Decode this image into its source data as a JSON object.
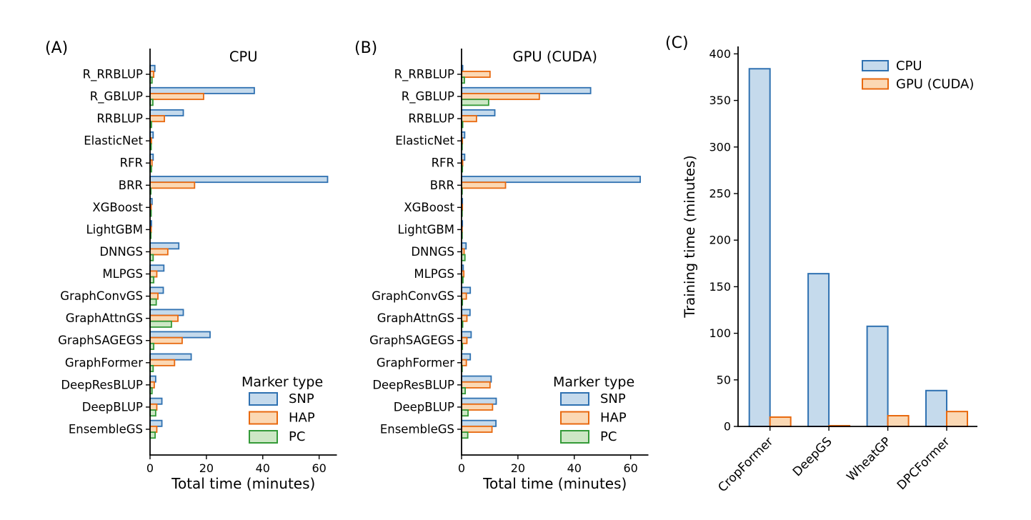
{
  "chart_data": [
    {
      "panel_label": "(A)",
      "type": "bar",
      "orientation": "horizontal",
      "title": "CPU",
      "xlabel": "Total time (minutes)",
      "categories": [
        "R_RRBLUP",
        "R_GBLUP",
        "RRBLUP",
        "ElasticNet",
        "RFR",
        "BRR",
        "XGBoost",
        "LightGBM",
        "DNNGS",
        "MLPGS",
        "GraphConvGS",
        "GraphAttnGS",
        "GraphSAGEGS",
        "GraphFormer",
        "DeepResBLUP",
        "DeepBLUP",
        "EnsembleGS"
      ],
      "series": [
        {
          "name": "SNP",
          "edge": "#2f71b1",
          "fill": "#c5daec",
          "values": [
            1.7,
            37,
            11.8,
            1.1,
            1.1,
            63,
            0.7,
            0.5,
            10.2,
            4.9,
            4.7,
            11.8,
            21.3,
            14.6,
            2.0,
            4.2,
            4.2
          ]
        },
        {
          "name": "HAP",
          "edge": "#e8690f",
          "fill": "#fbd8b4",
          "values": [
            1.3,
            19,
            5.1,
            0.5,
            0.7,
            15.8,
            0.4,
            0.4,
            6.3,
            2.4,
            2.8,
            9.9,
            11.4,
            8.7,
            1.5,
            2.4,
            2.4
          ]
        },
        {
          "name": "PC",
          "edge": "#349a38",
          "fill": "#cde7c5",
          "values": [
            0.7,
            1.0,
            0.5,
            0.4,
            0.5,
            0.3,
            0.4,
            0.3,
            1.1,
            1.3,
            2.2,
            7.6,
            1.3,
            1.1,
            0.7,
            2.0,
            1.8
          ]
        }
      ],
      "xticks": [
        0,
        20,
        40,
        60
      ],
      "xlim": [
        0,
        66.3
      ],
      "legend": {
        "title": "Marker type",
        "entries": [
          "SNP",
          "HAP",
          "PC"
        ],
        "position": "lower right"
      }
    },
    {
      "panel_label": "(B)",
      "type": "bar",
      "orientation": "horizontal",
      "title": "GPU (CUDA)",
      "xlabel": "Total time (minutes)",
      "categories": [
        "R_RRBLUP",
        "R_GBLUP",
        "RRBLUP",
        "ElasticNet",
        "RFR",
        "BRR",
        "XGBoost",
        "LightGBM",
        "DNNGS",
        "MLPGS",
        "GraphConvGS",
        "GraphAttnGS",
        "GraphSAGEGS",
        "GraphFormer",
        "DeepResBLUP",
        "DeepBLUP",
        "EnsembleGS"
      ],
      "series": [
        {
          "name": "SNP",
          "edge": "#2f71b1",
          "fill": "#c5daec",
          "values": [
            0.4,
            45.8,
            11.8,
            1.1,
            1.1,
            63.4,
            0.3,
            0.3,
            1.6,
            0.6,
            3.1,
            3.0,
            3.4,
            3.1,
            10.5,
            12.3,
            12.2
          ]
        },
        {
          "name": "HAP",
          "edge": "#e8690f",
          "fill": "#fbd8b4",
          "values": [
            10.1,
            27.6,
            5.3,
            0.3,
            0.4,
            15.6,
            0.3,
            0.2,
            0.9,
            0.8,
            1.7,
            1.9,
            1.9,
            1.7,
            10.1,
            11.0,
            10.8
          ]
        },
        {
          "name": "PC",
          "edge": "#349a38",
          "fill": "#cde7c5",
          "values": [
            1.0,
            9.6,
            0.4,
            0.2,
            0.3,
            0.2,
            0.2,
            0.2,
            1.2,
            0.5,
            0.3,
            0.4,
            0.3,
            0.2,
            1.3,
            2.3,
            2.2
          ]
        }
      ],
      "xticks": [
        0,
        20,
        40,
        60
      ],
      "xlim": [
        0,
        66.3
      ],
      "legend": {
        "title": "Marker type",
        "entries": [
          "SNP",
          "HAP",
          "PC"
        ],
        "position": "lower right"
      }
    },
    {
      "panel_label": "(C)",
      "type": "bar",
      "orientation": "vertical",
      "title": "",
      "ylabel": "Training time (minutes)",
      "categories": [
        "CropFormer",
        "DeepGS",
        "WheatGP",
        "DPCFormer"
      ],
      "series": [
        {
          "name": "CPU",
          "edge": "#2f71b1",
          "fill": "#c5daec",
          "values": [
            384,
            164,
            107.5,
            38.5
          ]
        },
        {
          "name": "GPU (CUDA)",
          "edge": "#e8690f",
          "fill": "#fbd8b4",
          "values": [
            10,
            0.8,
            11.5,
            16
          ]
        }
      ],
      "yticks": [
        0,
        50,
        100,
        150,
        200,
        250,
        300,
        350,
        400
      ],
      "ylim": [
        0,
        404
      ],
      "legend": {
        "entries": [
          "CPU",
          "GPU (CUDA)"
        ],
        "position": "upper right"
      }
    }
  ],
  "colors": {
    "snp_cpu_edge": "#2f71b1",
    "snp_cpu_fill": "#c5daec",
    "hap_gpu_edge": "#e8690f",
    "hap_gpu_fill": "#fbd8b4",
    "pc_edge": "#349a38",
    "pc_fill": "#cde7c5",
    "axis": "#000000"
  }
}
